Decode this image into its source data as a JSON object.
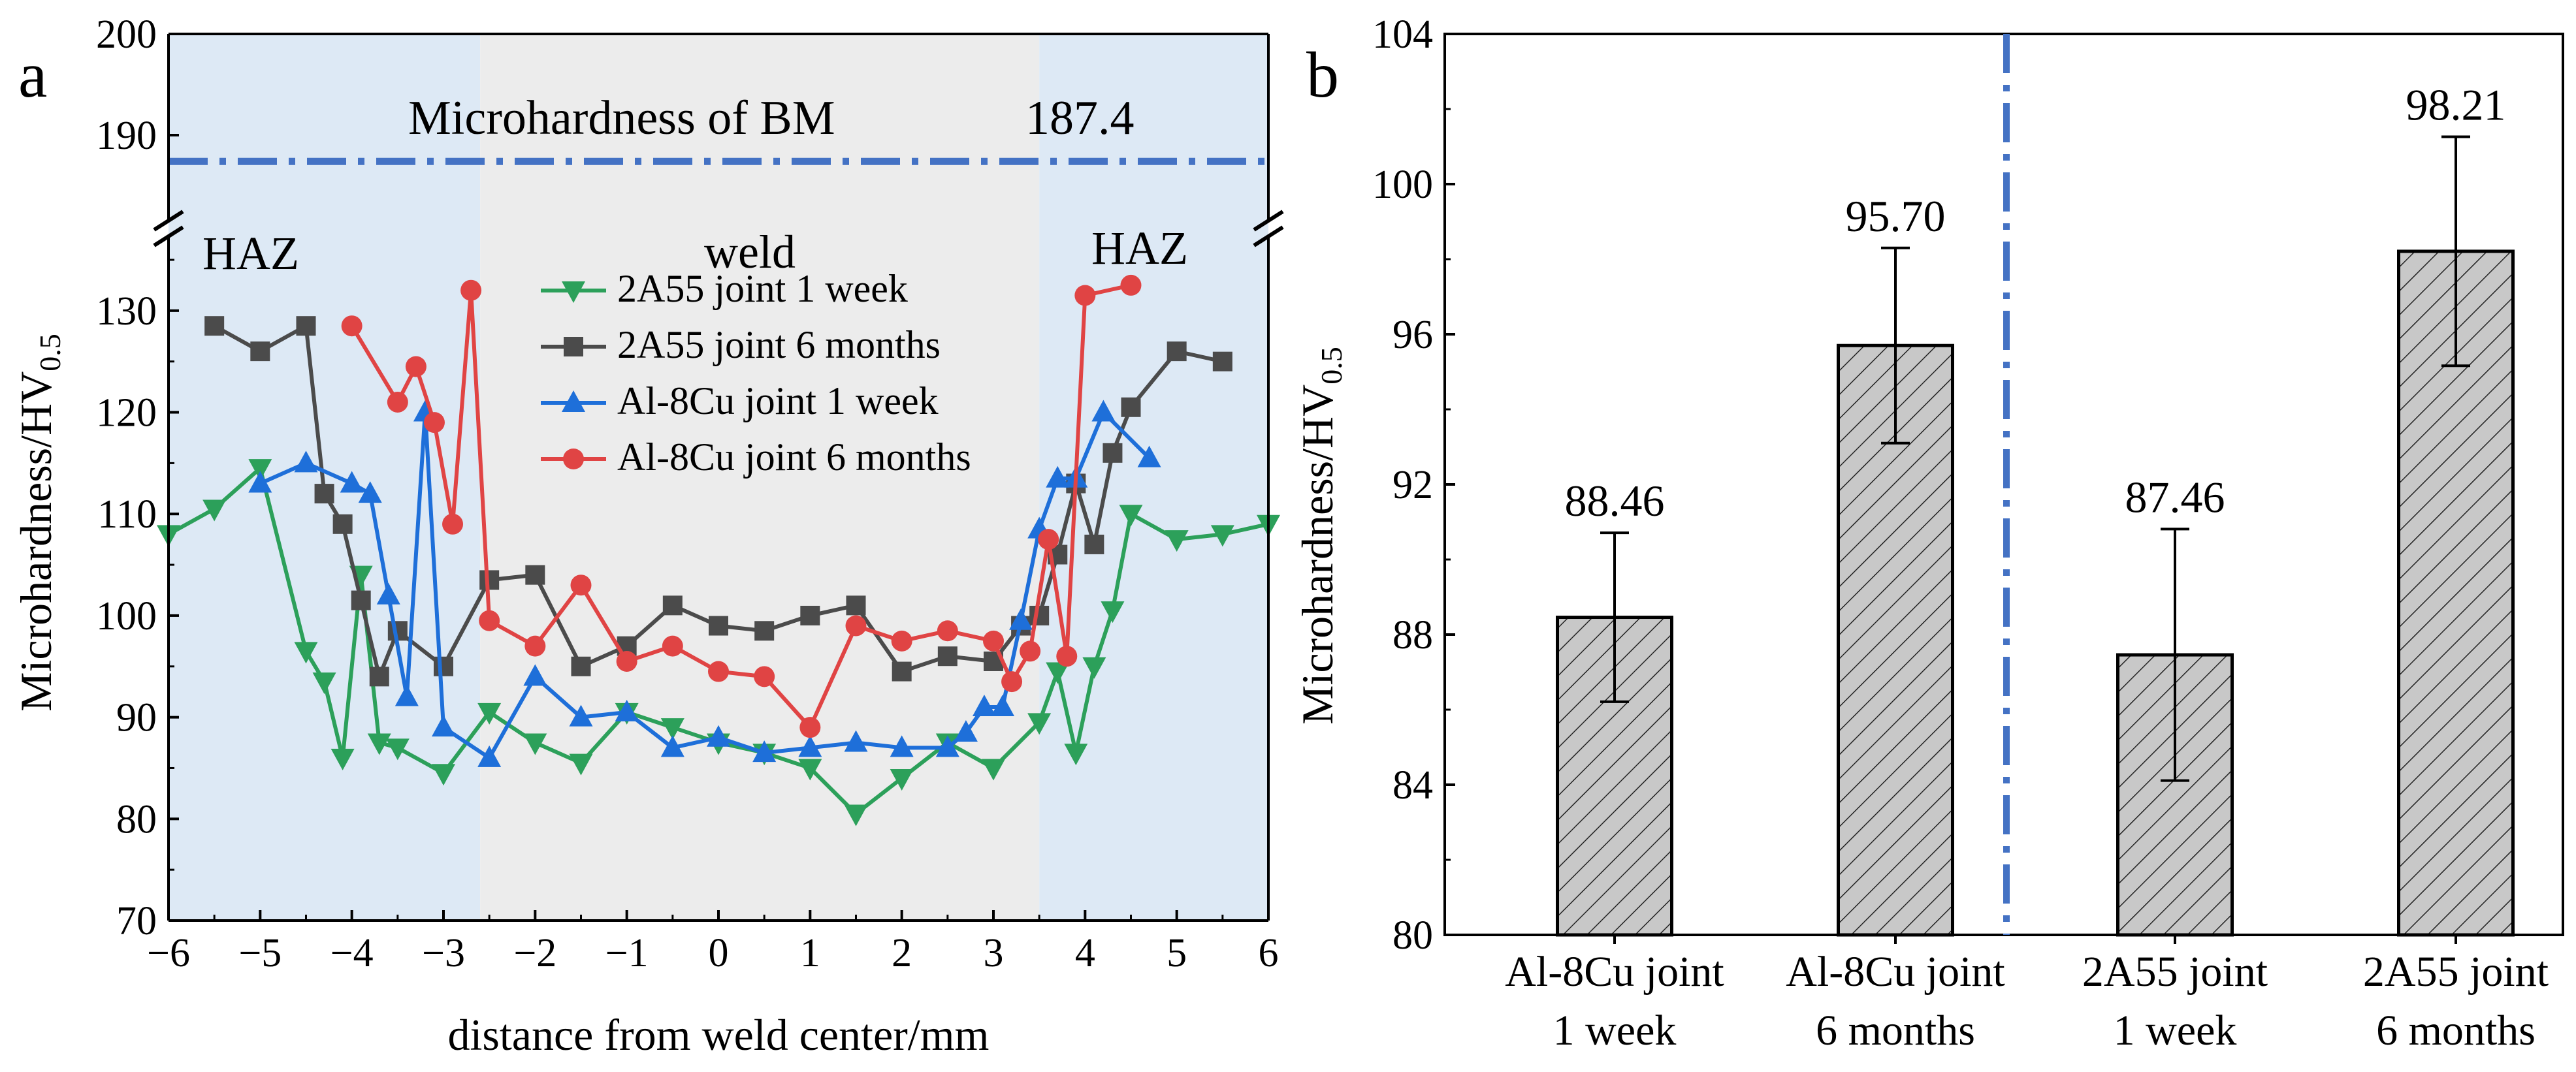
{
  "chart_data": [
    {
      "panel": "a",
      "type": "line",
      "title": "",
      "xlabel": "distance from weld center/mm",
      "ylabel": "Microhardness/HV",
      "ylabel_sub": "0.5",
      "xlim": [
        -6,
        6
      ],
      "xticks": [
        -6,
        -5,
        -4,
        -3,
        -2,
        -1,
        0,
        1,
        2,
        3,
        4,
        5,
        6
      ],
      "xtick_labels": [
        "−6",
        "−5",
        "−4",
        "−3",
        "−2",
        "−1",
        "0",
        "1",
        "2",
        "3",
        "4",
        "5",
        "6"
      ],
      "ylim_lower": [
        70,
        135
      ],
      "yticks_lower": [
        70,
        80,
        90,
        100,
        110,
        120,
        130
      ],
      "ylim_upper": [
        184,
        200
      ],
      "yticks_upper": [
        190,
        200
      ],
      "axis_break": true,
      "regions": [
        {
          "name": "haz-left",
          "label": "HAZ",
          "x_from": -6,
          "x_to": -2.6,
          "color": "#dde9f5"
        },
        {
          "name": "weld",
          "label": "weld",
          "x_from": -2.6,
          "x_to": 3.5,
          "color": "#ececec"
        },
        {
          "name": "haz-right",
          "label": "HAZ",
          "x_from": 3.5,
          "x_to": 6,
          "color": "#dde9f5"
        }
      ],
      "reference_line": {
        "label": "Microhardness of BM",
        "value_label": "187.4",
        "value": 187.4,
        "color": "#4472c4"
      },
      "legend_position": "top-center",
      "series": [
        {
          "name": "2A55 joint 1 week",
          "color": "#2ca05a",
          "marker": "triangle-down",
          "points": [
            [
              -6,
              108
            ],
            [
              -5.5,
              110.5
            ],
            [
              -5,
              114.5
            ],
            [
              -4.5,
              96.5
            ],
            [
              -4.3,
              93.5
            ],
            [
              -4.1,
              86
            ],
            [
              -3.9,
              104
            ],
            [
              -3.7,
              87.5
            ],
            [
              -3.5,
              87
            ],
            [
              -3,
              84.5
            ],
            [
              -2.5,
              90.5
            ],
            [
              -2,
              87.5
            ],
            [
              -1.5,
              85.5
            ],
            [
              -1,
              90.5
            ],
            [
              -0.5,
              89
            ],
            [
              0,
              87.5
            ],
            [
              0.5,
              86.5
            ],
            [
              1,
              85
            ],
            [
              1.5,
              80.5
            ],
            [
              2,
              84
            ],
            [
              2.5,
              87.5
            ],
            [
              3,
              85
            ],
            [
              3.5,
              89.5
            ],
            [
              3.7,
              94.5
            ],
            [
              3.9,
              86.5
            ],
            [
              4.1,
              95
            ],
            [
              4.3,
              100.5
            ],
            [
              4.5,
              110
            ],
            [
              5,
              107.5
            ],
            [
              5.5,
              108
            ],
            [
              6,
              109
            ]
          ]
        },
        {
          "name": "2A55 joint 6 months",
          "color": "#4b4b4b",
          "marker": "square",
          "points": [
            [
              -5.5,
              128.5
            ],
            [
              -5,
              126
            ],
            [
              -4.5,
              128.5
            ],
            [
              -4.3,
              112
            ],
            [
              -4.1,
              109
            ],
            [
              -3.9,
              101.5
            ],
            [
              -3.7,
              94
            ],
            [
              -3.5,
              98.5
            ],
            [
              -3,
              95
            ],
            [
              -2.5,
              103.5
            ],
            [
              -2,
              104
            ],
            [
              -1.5,
              95
            ],
            [
              -1,
              97
            ],
            [
              -0.5,
              101
            ],
            [
              0,
              99
            ],
            [
              0.5,
              98.5
            ],
            [
              1,
              100
            ],
            [
              1.5,
              101
            ],
            [
              2,
              94.5
            ],
            [
              2.5,
              96
            ],
            [
              3,
              95.5
            ],
            [
              3.3,
              99
            ],
            [
              3.5,
              100
            ],
            [
              3.7,
              106
            ],
            [
              3.9,
              113
            ],
            [
              4.1,
              107
            ],
            [
              4.3,
              116
            ],
            [
              4.5,
              120.5
            ],
            [
              5,
              126
            ],
            [
              5.5,
              125
            ]
          ]
        },
        {
          "name": "Al-8Cu joint 1 week",
          "color": "#1e6fd9",
          "marker": "triangle-up",
          "points": [
            [
              -5,
              113
            ],
            [
              -4.5,
              115
            ],
            [
              -4,
              113
            ],
            [
              -3.8,
              112
            ],
            [
              -3.6,
              102
            ],
            [
              -3.4,
              92
            ],
            [
              -3.2,
              120
            ],
            [
              -3,
              89
            ],
            [
              -2.5,
              86
            ],
            [
              -2,
              94
            ],
            [
              -1.5,
              90
            ],
            [
              -1,
              90.5
            ],
            [
              -0.5,
              87
            ],
            [
              0,
              88
            ],
            [
              0.5,
              86.5
            ],
            [
              1,
              87
            ],
            [
              1.5,
              87.5
            ],
            [
              2,
              87
            ],
            [
              2.5,
              87
            ],
            [
              2.7,
              88.5
            ],
            [
              2.9,
              91
            ],
            [
              3.1,
              91
            ],
            [
              3.3,
              99.5
            ],
            [
              3.5,
              108.5
            ],
            [
              3.7,
              113.5
            ],
            [
              3.9,
              113.5
            ],
            [
              4.2,
              120
            ],
            [
              4.7,
              115.5
            ]
          ]
        },
        {
          "name": "Al-8Cu joint 6 months",
          "color": "#e04444",
          "marker": "circle",
          "points": [
            [
              -4,
              128.5
            ],
            [
              -3.5,
              121
            ],
            [
              -3.3,
              124.5
            ],
            [
              -3.1,
              119
            ],
            [
              -2.9,
              109
            ],
            [
              -2.7,
              132
            ],
            [
              -2.5,
              99.5
            ],
            [
              -2,
              97
            ],
            [
              -1.5,
              103
            ],
            [
              -1,
              95.5
            ],
            [
              -0.5,
              97
            ],
            [
              0,
              94.5
            ],
            [
              0.5,
              94
            ],
            [
              1,
              89
            ],
            [
              1.5,
              99
            ],
            [
              2,
              97.5
            ],
            [
              2.5,
              98.5
            ],
            [
              3,
              97.5
            ],
            [
              3.2,
              93.5
            ],
            [
              3.4,
              96.5
            ],
            [
              3.6,
              107.5
            ],
            [
              3.8,
              96
            ],
            [
              4,
              131.5
            ],
            [
              4.5,
              132.5
            ]
          ]
        }
      ]
    },
    {
      "panel": "b",
      "type": "bar",
      "title": "",
      "xlabel": "",
      "ylabel": "Microhardness/HV",
      "ylabel_sub": "0.5",
      "ylim": [
        80,
        104
      ],
      "yticks": [
        80,
        84,
        88,
        92,
        96,
        100,
        104
      ],
      "categories": [
        [
          "Al-8Cu joint",
          "1 week"
        ],
        [
          "Al-8Cu joint",
          "6 months"
        ],
        [
          "2A55 joint",
          "1 week"
        ],
        [
          "2A55 joint",
          "6 months"
        ]
      ],
      "values": [
        88.46,
        95.7,
        87.46,
        98.21
      ],
      "value_labels": [
        "88.46",
        "95.70",
        "87.46",
        "98.21"
      ],
      "errors": [
        2.25,
        2.6,
        3.35,
        3.05
      ],
      "bar_color": "#c8c8c8",
      "bar_pattern": "diagonal-hatch",
      "divider_color": "#4472c4"
    }
  ],
  "labels": {
    "panel_a": "a",
    "panel_b": "b"
  }
}
